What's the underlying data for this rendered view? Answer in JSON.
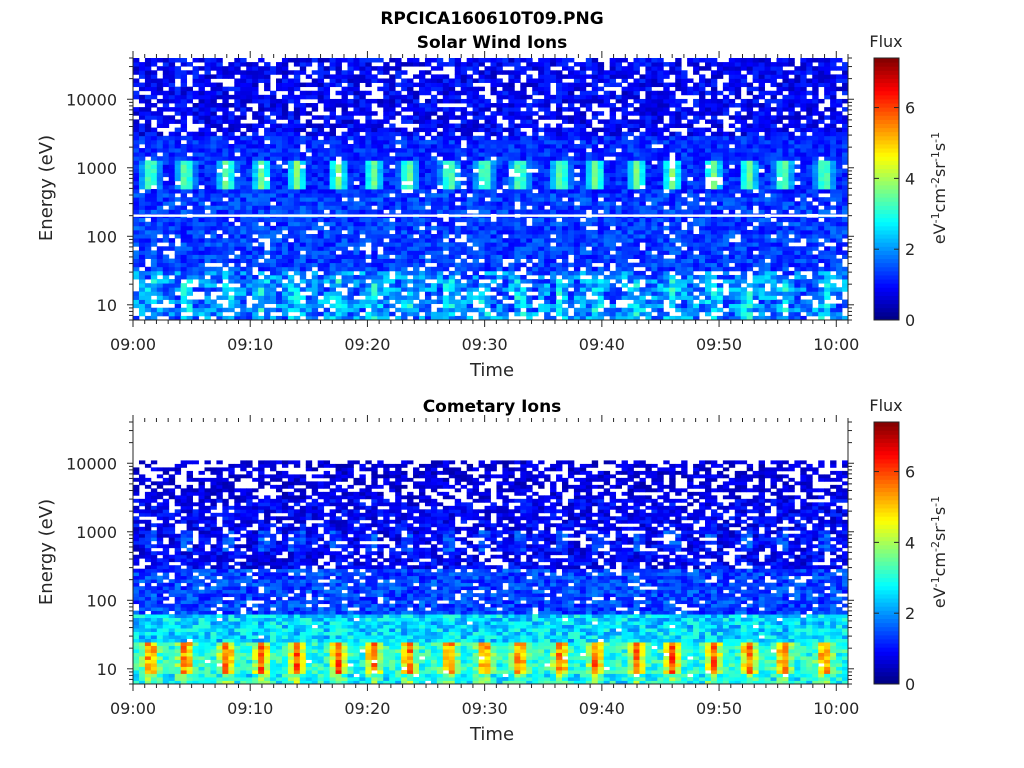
{
  "figure_title": "RPCICA160610T09.PNG",
  "chart_data": [
    {
      "type": "heatmap",
      "title": "Solar Wind Ions",
      "xlabel": "Time",
      "ylabel": "Energy (eV)",
      "x_ticks": [
        "09:00",
        "09:10",
        "09:20",
        "09:30",
        "09:40",
        "09:50",
        "10:00"
      ],
      "xlim_minutes": [
        0,
        61
      ],
      "y_scale": "log",
      "y_ticks": [
        10,
        100,
        1000,
        10000
      ],
      "y_tick_labels": [
        "10",
        "100",
        "1000",
        "10000"
      ],
      "ylim": [
        6,
        40000
      ],
      "data_energy_range": [
        6,
        40000
      ],
      "gap_energy_eV": 200,
      "bright_band_energy_eV": 800,
      "bright_band_minutes": [
        1.5,
        4.5,
        8,
        11,
        14,
        17.5,
        20.5,
        23.5,
        27,
        30,
        33,
        36.5,
        39.5,
        43,
        46,
        49.5,
        52.5,
        55.5,
        59
      ],
      "colorbar": {
        "label": "Flux",
        "units_label": "eV-1cm-2sr-1s-1",
        "ticks": [
          "0",
          "2",
          "4",
          "6"
        ],
        "range": [
          0,
          7.4
        ],
        "colormap": "jet"
      }
    },
    {
      "type": "heatmap",
      "title": "Cometary Ions",
      "xlabel": "Time",
      "ylabel": "Energy (eV)",
      "x_ticks": [
        "09:00",
        "09:10",
        "09:20",
        "09:30",
        "09:40",
        "09:50",
        "10:00"
      ],
      "xlim_minutes": [
        0,
        61
      ],
      "y_scale": "log",
      "y_ticks": [
        10,
        100,
        1000,
        10000
      ],
      "y_tick_labels": [
        "10",
        "100",
        "1000",
        "10000"
      ],
      "ylim": [
        6,
        40000
      ],
      "data_energy_range": [
        6,
        11000
      ],
      "low_energy_peak_eV": 15,
      "peak_minutes": [
        1.5,
        4.5,
        8,
        11,
        14,
        17.5,
        20.5,
        23.5,
        27,
        30,
        33,
        36.5,
        39.5,
        43,
        46,
        49.5,
        52.5,
        55.5,
        59
      ],
      "colorbar": {
        "label": "Flux",
        "units_label": "eV-1cm-2sr-1s-1",
        "ticks": [
          "0",
          "2",
          "4",
          "6"
        ],
        "range": [
          0,
          7.4
        ],
        "colormap": "jet"
      }
    }
  ],
  "colors": {
    "axis": "#262626",
    "background": "#ffffff",
    "gap_line": "#ffffff"
  }
}
